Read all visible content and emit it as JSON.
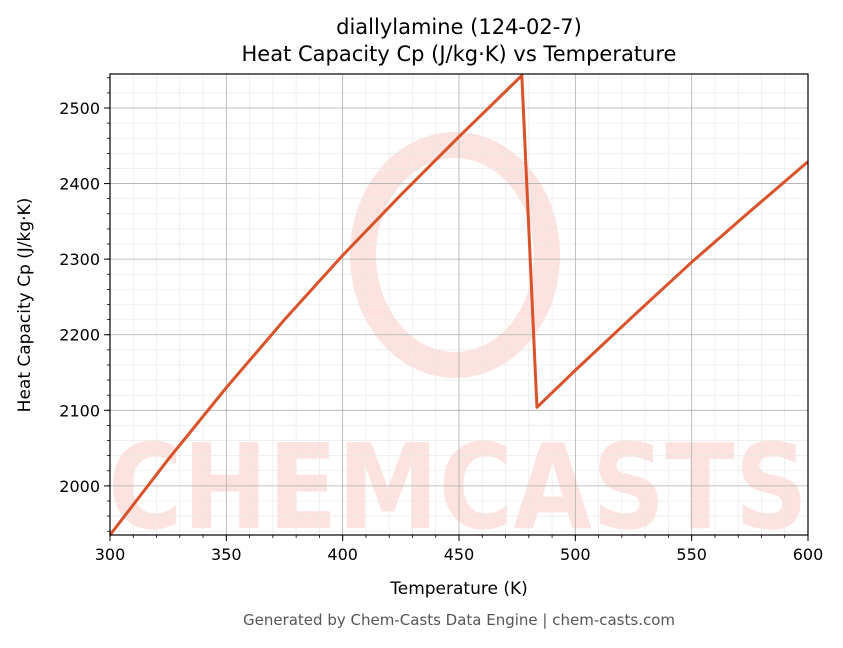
{
  "title_line1": "diallylamine (124-02-7)",
  "title_line2": "Heat Capacity Cp (J/kg·K) vs Temperature",
  "footer": "Generated by Chem-Casts Data Engine | chem-casts.com",
  "watermark": "CHEMCASTS",
  "colors": {
    "line": "#d9532a",
    "watermark": "#fde3df",
    "grid_major": "#b0b0b0",
    "grid_minor": "#e6e6e6",
    "footer": "#555555"
  },
  "chart_data": {
    "type": "line",
    "title": "diallylamine (124-02-7)\nHeat Capacity Cp (J/kg·K) vs Temperature",
    "xlabel": "Temperature (K)",
    "ylabel": "Heat Capacity Cp (J/kg·K)",
    "xlim": [
      300,
      600
    ],
    "ylim": [
      1935,
      2545
    ],
    "x_ticks": [
      300,
      350,
      400,
      450,
      500,
      550,
      600
    ],
    "y_ticks": [
      2000,
      2100,
      2200,
      2300,
      2400,
      2500
    ],
    "grid": true,
    "series": [
      {
        "name": "",
        "x": [
          300,
          325,
          350,
          375,
          400,
          425,
          450,
          477,
          483.5,
          500,
          525,
          550,
          575,
          600
        ],
        "y": [
          1935,
          2035,
          2130,
          2220,
          2305,
          2385,
          2462,
          2543,
          2104,
          2153,
          2225,
          2296,
          2363,
          2429
        ]
      }
    ]
  }
}
